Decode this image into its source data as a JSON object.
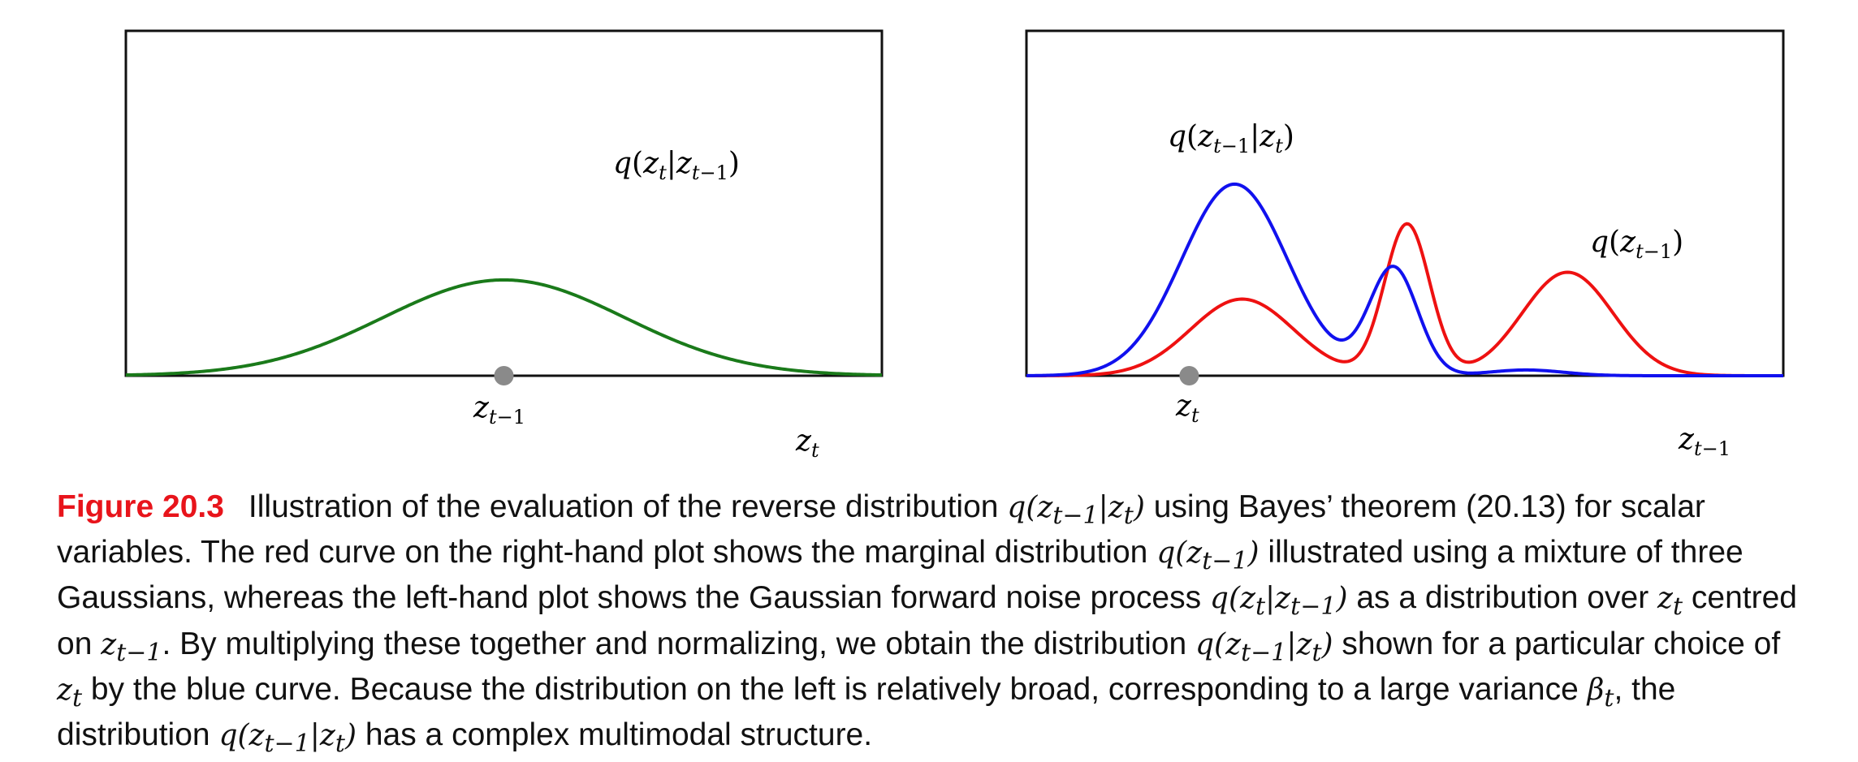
{
  "chart_data": [
    {
      "type": "line",
      "panel": "left",
      "series": [
        {
          "name": "q(z_t|z_{t-1})",
          "color": "#1a7a1a",
          "gaussian": {
            "mean": 0.5,
            "sd": 0.16,
            "amplitude": 1.0
          }
        }
      ],
      "marker": {
        "label": "z_{t-1}",
        "x": 0.5,
        "color": "#8a8a8a"
      },
      "xlabel": "z_t",
      "curve_label": "q(z_t|z_{t-1})",
      "xlim": [
        0,
        1
      ],
      "ylim": [
        0,
        3.6
      ]
    },
    {
      "type": "line",
      "panel": "right",
      "series": [
        {
          "name": "q(z_{t-1})",
          "color": "#ee1111",
          "components": [
            {
              "mean": 0.285,
              "sd": 0.068,
              "amplitude": 0.8
            },
            {
              "mean": 0.503,
              "sd": 0.03,
              "amplitude": 1.58
            },
            {
              "mean": 0.715,
              "sd": 0.06,
              "amplitude": 1.08
            }
          ]
        },
        {
          "name": "q(z_{t-1}|z_t)",
          "color": "#1111ee",
          "components": [
            {
              "mean": 0.275,
              "sd": 0.07,
              "amplitude": 2.0
            },
            {
              "mean": 0.485,
              "sd": 0.032,
              "amplitude": 1.12
            },
            {
              "mean": 0.66,
              "sd": 0.05,
              "amplitude": 0.06
            }
          ]
        }
      ],
      "marker": {
        "label": "z_t",
        "x": 0.215,
        "color": "#8a8a8a"
      },
      "xlabel": "z_{t-1}",
      "curve_labels": [
        "q(z_{t-1}|z_t)",
        "q(z_{t-1})"
      ],
      "xlim": [
        0,
        1
      ],
      "ylim": [
        0,
        3.6
      ]
    }
  ],
  "caption": {
    "figure_label": "Figure 20.3",
    "parts": [
      "Illustration of the evaluation of the reverse distribution ",
      "q(z_{t-1}|z_t)",
      " using Bayes’ theorem (20.13) for scalar variables. The red curve on the right-hand plot shows the marginal distribution ",
      "q(z_{t-1})",
      " illustrated using a mixture of three Gaussians, whereas the left-hand plot shows the Gaussian forward noise process ",
      "q(z_t|z_{t-1})",
      " as a distribution over ",
      "z_t",
      " centred on ",
      "z_{t-1}",
      ". By multiplying these together and normalizing, we obtain the distribution ",
      "q(z_{t-1}|z_t)",
      " shown for a particular choice of ",
      "z_t",
      " by the blue curve. Because the distribution on the left is relatively broad, corresponding to a large variance ",
      "β_t",
      ", the distribution ",
      "q(z_{t-1}|z_t)",
      " has a complex multimodal structure."
    ]
  }
}
